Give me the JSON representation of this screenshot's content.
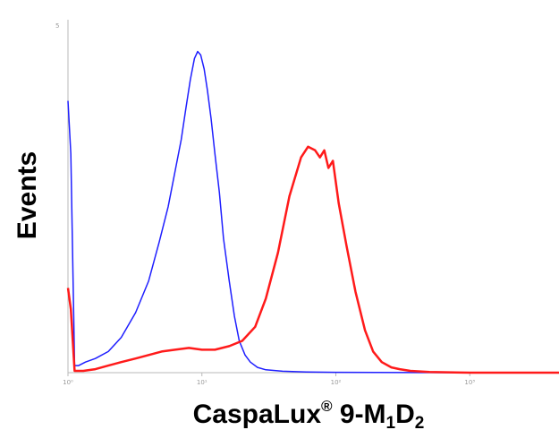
{
  "chart_data": {
    "type": "line",
    "title": "",
    "ylabel": "Events",
    "xlabel": {
      "base": "CaspaLux",
      "superscript": "®",
      "middle": " 9-M",
      "sub1": "1",
      "mid2": "D",
      "sub2": "2"
    },
    "x_scale": "log",
    "xlim": [
      1,
      10000
    ],
    "ylim": [
      0,
      100
    ],
    "x_tick_labels": [
      "10⁰",
      "10¹",
      "10²",
      "10³"
    ],
    "y_tick_label": "5",
    "series": [
      {
        "color": "#1f1fff",
        "x": [
          1.0,
          1.05,
          1.12,
          1.2,
          1.35,
          1.6,
          2.0,
          2.5,
          3.2,
          4.0,
          4.8,
          5.6,
          6.3,
          7.0,
          7.6,
          8.2,
          8.8,
          9.3,
          9.8,
          10.4,
          11.0,
          11.7,
          12.5,
          13.5,
          14.5,
          16.0,
          17.5,
          19.0,
          21.0,
          23.0,
          26.0,
          30.0,
          40.0,
          60.0,
          100.0,
          200.0,
          1000.0,
          10000.0
        ],
        "y": [
          77,
          62,
          2,
          2,
          3,
          4,
          6,
          10,
          17,
          26,
          37,
          47,
          57,
          66,
          75,
          83,
          89,
          91,
          90,
          86,
          80,
          72,
          62,
          51,
          38,
          26,
          16,
          9,
          5,
          3,
          1.5,
          0.8,
          0.4,
          0.2,
          0.1,
          0.05,
          0,
          0
        ]
      },
      {
        "color": "#ff1a1a",
        "x": [
          1.0,
          1.05,
          1.12,
          1.3,
          1.6,
          2.0,
          2.5,
          3.2,
          4.0,
          5.0,
          6.3,
          8.0,
          10.0,
          12.5,
          16.0,
          20.0,
          25.0,
          30.0,
          37.0,
          45.0,
          55.0,
          62.0,
          70.0,
          76.0,
          82.0,
          88.0,
          95.0,
          105.0,
          120.0,
          140.0,
          165.0,
          190.0,
          220.0,
          260.0,
          300.0,
          360.0,
          500.0,
          1000.0,
          10000.0
        ],
        "y": [
          24,
          18,
          0.5,
          0.5,
          1,
          2,
          3,
          4,
          5,
          6,
          6.5,
          7,
          6.5,
          6.5,
          7.5,
          9,
          13,
          21,
          34,
          50,
          61,
          64,
          63,
          61,
          63,
          58,
          60,
          48,
          36,
          23,
          12,
          6,
          3,
          1.5,
          1,
          0.5,
          0.2,
          0,
          0
        ]
      }
    ]
  }
}
